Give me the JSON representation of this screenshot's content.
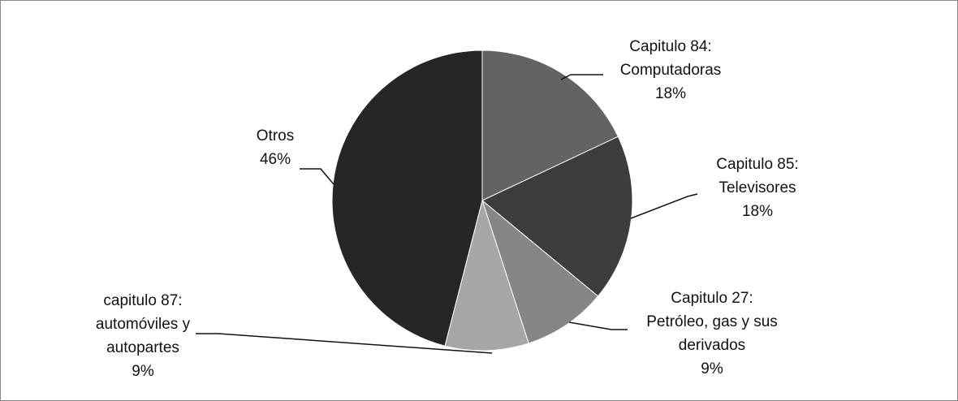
{
  "chart_data": {
    "type": "pie",
    "categories": [
      "Capitulo 84:\nComputadoras",
      "Capitulo 85:\nTelevisores",
      "Capitulo 27:\nPetróleo, gas y sus\nderivados",
      "capitulo 87:\nautomóviles y\nautopartes",
      "Otros"
    ],
    "values": [
      18,
      18,
      9,
      9,
      46
    ],
    "value_labels": [
      "18%",
      "18%",
      "9%",
      "9%",
      "46%"
    ],
    "colors": [
      "#636363",
      "#3d3d3d",
      "#868686",
      "#a6a6a6",
      "#262626"
    ]
  }
}
